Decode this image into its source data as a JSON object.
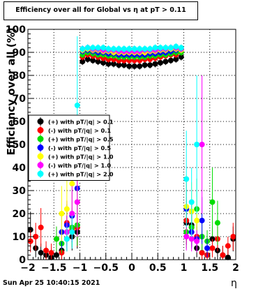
{
  "timestamp": "Sun Apr 25 10:40:15 2021",
  "chart_data": {
    "type": "scatter",
    "title": "Efficiency over all for Global vs   η at pT > 0.11",
    "xlabel": "η",
    "ylabel": "Efficiency over all (%)",
    "xlim": [
      -2,
      2
    ],
    "ylim": [
      0,
      100
    ],
    "x_ticks": [
      "−2",
      "−1.5",
      "−1",
      "−0.5",
      "0",
      "0.5",
      "1",
      "1.5",
      "2"
    ],
    "y_ticks": [
      "0",
      "10",
      "20",
      "30",
      "40",
      "50",
      "60",
      "70",
      "80",
      "90",
      "100"
    ],
    "grid": true,
    "legend_placement": "left-middle",
    "series": [
      {
        "name": "(+) with pT/|q| > 0.1",
        "color": "#000000",
        "points": [
          [
            -1.95,
            13
          ],
          [
            -1.85,
            5
          ],
          [
            -1.75,
            3
          ],
          [
            -1.65,
            2
          ],
          [
            -1.55,
            1
          ],
          [
            -1.45,
            2
          ],
          [
            -1.35,
            4
          ],
          [
            -1.25,
            9
          ],
          [
            -1.15,
            10
          ],
          [
            -1.05,
            12
          ],
          [
            -0.95,
            86
          ],
          [
            -0.85,
            87
          ],
          [
            -0.75,
            86.5
          ],
          [
            -0.65,
            86
          ],
          [
            -0.55,
            85.5
          ],
          [
            -0.45,
            85
          ],
          [
            -0.35,
            85
          ],
          [
            -0.25,
            84.5
          ],
          [
            -0.15,
            84.5
          ],
          [
            -0.05,
            84
          ],
          [
            0.05,
            84
          ],
          [
            0.15,
            84
          ],
          [
            0.25,
            84.5
          ],
          [
            0.35,
            84.5
          ],
          [
            0.45,
            85
          ],
          [
            0.55,
            85.5
          ],
          [
            0.65,
            86
          ],
          [
            0.75,
            86.5
          ],
          [
            0.85,
            87
          ],
          [
            0.95,
            88
          ],
          [
            1.05,
            16
          ],
          [
            1.15,
            15
          ],
          [
            1.25,
            5
          ],
          [
            1.35,
            3
          ],
          [
            1.45,
            2
          ],
          [
            1.55,
            9
          ],
          [
            1.65,
            4
          ],
          [
            1.75,
            2
          ],
          [
            1.85,
            1
          ],
          [
            1.95,
            9
          ]
        ]
      },
      {
        "name": "(-) with pT/|q| > 0.1",
        "color": "#ff0000",
        "points": [
          [
            -1.95,
            8
          ],
          [
            -1.85,
            10
          ],
          [
            -1.75,
            14
          ],
          [
            -1.65,
            4
          ],
          [
            -1.55,
            3
          ],
          [
            -1.45,
            9
          ],
          [
            -1.35,
            3
          ],
          [
            -1.25,
            16
          ],
          [
            -1.15,
            13
          ],
          [
            -1.05,
            14
          ],
          [
            -0.95,
            88
          ],
          [
            -0.85,
            89
          ],
          [
            -0.75,
            88.5
          ],
          [
            -0.65,
            88
          ],
          [
            -0.55,
            87.5
          ],
          [
            -0.45,
            87
          ],
          [
            -0.35,
            87
          ],
          [
            -0.25,
            86.5
          ],
          [
            -0.15,
            86.5
          ],
          [
            -0.05,
            86.5
          ],
          [
            0.05,
            86.5
          ],
          [
            0.15,
            86.5
          ],
          [
            0.25,
            87
          ],
          [
            0.35,
            87
          ],
          [
            0.45,
            87.5
          ],
          [
            0.55,
            88
          ],
          [
            0.65,
            88.5
          ],
          [
            0.75,
            89
          ],
          [
            0.85,
            89
          ],
          [
            0.95,
            90
          ],
          [
            1.05,
            17
          ],
          [
            1.15,
            14
          ],
          [
            1.25,
            10
          ],
          [
            1.35,
            3
          ],
          [
            1.45,
            2
          ],
          [
            1.55,
            5
          ],
          [
            1.65,
            9
          ],
          [
            1.75,
            2
          ],
          [
            1.85,
            6
          ],
          [
            1.95,
            10
          ]
        ]
      },
      {
        "name": "(+) with pT/|q| > 0.5",
        "color": "#00dd00",
        "points": [
          [
            -1.45,
            9
          ],
          [
            -1.35,
            7
          ],
          [
            -1.25,
            12
          ],
          [
            -1.15,
            14
          ],
          [
            -1.05,
            15
          ],
          [
            -0.95,
            89
          ],
          [
            -0.85,
            90
          ],
          [
            -0.75,
            89.5
          ],
          [
            -0.65,
            89
          ],
          [
            -0.55,
            89
          ],
          [
            -0.45,
            88.5
          ],
          [
            -0.35,
            88.5
          ],
          [
            -0.25,
            88
          ],
          [
            -0.15,
            88
          ],
          [
            -0.05,
            88
          ],
          [
            0.05,
            88
          ],
          [
            0.15,
            88
          ],
          [
            0.25,
            88
          ],
          [
            0.35,
            88.5
          ],
          [
            0.45,
            88.5
          ],
          [
            0.55,
            89
          ],
          [
            0.65,
            89
          ],
          [
            0.75,
            89.5
          ],
          [
            0.85,
            90
          ],
          [
            0.95,
            90
          ],
          [
            1.05,
            12
          ],
          [
            1.15,
            14
          ],
          [
            1.25,
            22
          ],
          [
            1.35,
            10
          ],
          [
            1.45,
            8
          ],
          [
            1.55,
            25
          ],
          [
            1.65,
            16
          ]
        ]
      },
      {
        "name": "(-) with pT/|q| > 0.5",
        "color": "#0000ff",
        "points": [
          [
            -1.35,
            12
          ],
          [
            -1.25,
            15
          ],
          [
            -1.15,
            19
          ],
          [
            -1.05,
            31
          ],
          [
            -0.95,
            90.5
          ],
          [
            -0.85,
            91
          ],
          [
            -0.75,
            90.5
          ],
          [
            -0.65,
            90
          ],
          [
            -0.55,
            90
          ],
          [
            -0.45,
            89.5
          ],
          [
            -0.35,
            89.5
          ],
          [
            -0.25,
            89
          ],
          [
            -0.15,
            89
          ],
          [
            -0.05,
            89
          ],
          [
            0.05,
            89
          ],
          [
            0.15,
            89
          ],
          [
            0.25,
            89
          ],
          [
            0.35,
            89.5
          ],
          [
            0.45,
            89.5
          ],
          [
            0.55,
            90
          ],
          [
            0.65,
            90
          ],
          [
            0.75,
            90.5
          ],
          [
            0.85,
            91
          ],
          [
            0.95,
            91
          ],
          [
            1.05,
            22
          ],
          [
            1.15,
            12
          ],
          [
            1.25,
            9
          ],
          [
            1.35,
            17
          ],
          [
            1.45,
            5
          ]
        ]
      },
      {
        "name": "(+) with pT/|q| > 1.0",
        "color": "#ffff00",
        "points": [
          [
            -1.35,
            20
          ],
          [
            -1.25,
            22
          ],
          [
            -1.15,
            33
          ],
          [
            -1.05,
            25
          ],
          [
            -0.95,
            91
          ],
          [
            -0.85,
            91.5
          ],
          [
            -0.75,
            91
          ],
          [
            -0.65,
            91
          ],
          [
            -0.55,
            90.5
          ],
          [
            -0.45,
            90.5
          ],
          [
            -0.35,
            90
          ],
          [
            -0.25,
            90
          ],
          [
            -0.15,
            90
          ],
          [
            -0.05,
            90
          ],
          [
            0.05,
            90
          ],
          [
            0.15,
            90
          ],
          [
            0.25,
            90
          ],
          [
            0.35,
            90.5
          ],
          [
            0.45,
            90.5
          ],
          [
            0.55,
            91
          ],
          [
            0.65,
            91
          ],
          [
            0.75,
            91.5
          ],
          [
            0.85,
            91.5
          ],
          [
            0.95,
            91
          ],
          [
            1.05,
            23
          ],
          [
            1.15,
            21
          ],
          [
            1.25,
            17
          ]
        ]
      },
      {
        "name": "(-) with pT/|q| > 1.0",
        "color": "#ff00ff",
        "points": [
          [
            -1.25,
            12
          ],
          [
            -1.15,
            20
          ],
          [
            -1.05,
            25
          ],
          [
            -0.95,
            91.5
          ],
          [
            -0.85,
            92
          ],
          [
            -0.75,
            91.5
          ],
          [
            -0.65,
            91.5
          ],
          [
            -0.55,
            91
          ],
          [
            -0.45,
            91
          ],
          [
            -0.35,
            91
          ],
          [
            -0.25,
            90.5
          ],
          [
            -0.15,
            90.5
          ],
          [
            -0.05,
            90.5
          ],
          [
            0.05,
            90.5
          ],
          [
            0.15,
            90.5
          ],
          [
            0.25,
            91
          ],
          [
            0.35,
            91
          ],
          [
            0.45,
            91
          ],
          [
            0.55,
            91.5
          ],
          [
            0.65,
            91.5
          ],
          [
            0.75,
            92
          ],
          [
            0.85,
            92
          ],
          [
            0.95,
            91.5
          ],
          [
            1.05,
            10
          ],
          [
            1.15,
            9
          ],
          [
            1.25,
            8
          ],
          [
            1.35,
            50
          ]
        ]
      },
      {
        "name": "(+) with pT/|q| > 2.0",
        "color": "#00ffff",
        "points": [
          [
            -1.25,
            9
          ],
          [
            -1.15,
            12
          ],
          [
            -1.05,
            67
          ],
          [
            -0.95,
            91.5
          ],
          [
            -0.85,
            92
          ],
          [
            -0.75,
            92
          ],
          [
            -0.65,
            92
          ],
          [
            -0.55,
            92
          ],
          [
            -0.45,
            91.5
          ],
          [
            -0.35,
            91.5
          ],
          [
            -0.25,
            91.5
          ],
          [
            -0.15,
            91.5
          ],
          [
            -0.05,
            91.5
          ],
          [
            0.05,
            91.5
          ],
          [
            0.15,
            91.5
          ],
          [
            0.25,
            91.5
          ],
          [
            0.35,
            91.5
          ],
          [
            0.45,
            92
          ],
          [
            0.55,
            92
          ],
          [
            0.65,
            92
          ],
          [
            0.75,
            92
          ],
          [
            0.85,
            92.5
          ],
          [
            0.95,
            92
          ],
          [
            1.05,
            35
          ],
          [
            1.15,
            25
          ],
          [
            1.25,
            50
          ]
        ]
      }
    ]
  }
}
